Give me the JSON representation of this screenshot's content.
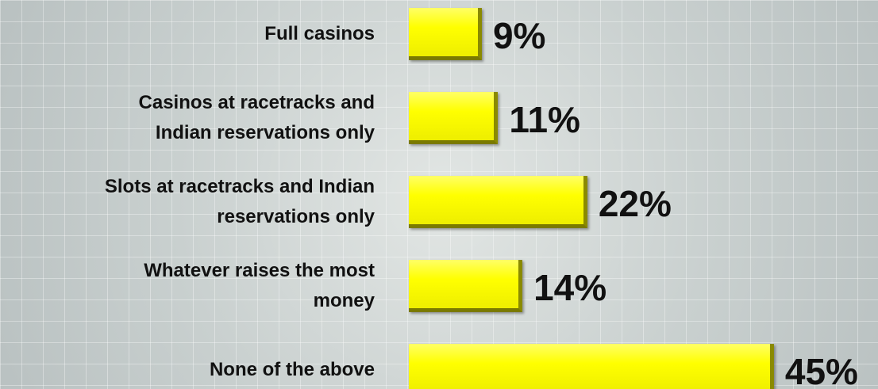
{
  "chart_data": {
    "type": "bar",
    "orientation": "horizontal",
    "categories": [
      "Full casinos",
      "Casinos at racetracks and Indian reservations only",
      "Slots at racetracks and Indian reservations only",
      "Whatever raises the most money",
      "None of the above"
    ],
    "values": [
      9,
      11,
      22,
      14,
      45
    ],
    "value_labels": [
      "9%",
      "11%",
      "22%",
      "14%",
      "45%"
    ],
    "color": "#ffff00"
  }
}
